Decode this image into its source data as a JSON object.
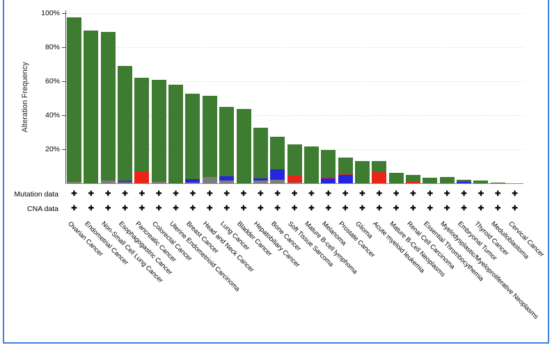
{
  "window": {
    "border_color": "#3d7fd9",
    "background": "#ffffff"
  },
  "chart_data": {
    "type": "bar",
    "stacked": true,
    "title": "",
    "xlabel": "",
    "ylabel": "Alteration Frequency",
    "ylim": [
      0,
      100
    ],
    "grid": "faint dashed horizontal gridlines at each y tick",
    "legend_position": "none",
    "yticks": [
      {
        "value": 20,
        "label": "20%"
      },
      {
        "value": 40,
        "label": "40%"
      },
      {
        "value": 60,
        "label": "60%"
      },
      {
        "value": 80,
        "label": "80%"
      },
      {
        "value": 100,
        "label": "100%"
      }
    ],
    "alteration_colors": {
      "mutation": "#3d7c31",
      "amplification": "#ea2518",
      "deep_deletion": "#2525dd",
      "fusion": "#42429e",
      "multiple_alterations": "#7d7d7d"
    },
    "bars": [
      {
        "label": "Ovarian Cancer",
        "total": 97.5,
        "segments": [
          {
            "type": "multiple_alterations",
            "value": 1
          },
          {
            "type": "mutation",
            "value": 96.5
          }
        ]
      },
      {
        "label": "Endometrial Cancer",
        "total": 90,
        "segments": [
          {
            "type": "mutation",
            "value": 90
          }
        ]
      },
      {
        "label": "Non-Small Cell Lung Cancer",
        "total": 89,
        "segments": [
          {
            "type": "multiple_alterations",
            "value": 1.5
          },
          {
            "type": "mutation",
            "value": 87.5
          }
        ]
      },
      {
        "label": "Esophagogastric Cancer",
        "total": 69,
        "segments": [
          {
            "type": "multiple_alterations",
            "value": 0.5
          },
          {
            "type": "fusion",
            "value": 1.3
          },
          {
            "type": "mutation",
            "value": 67.2
          }
        ]
      },
      {
        "label": "Pancreatic Cancer",
        "total": 62,
        "segments": [
          {
            "type": "amplification",
            "value": 7
          },
          {
            "type": "mutation",
            "value": 55
          }
        ]
      },
      {
        "label": "Colorectal Cancer",
        "total": 61,
        "segments": [
          {
            "type": "multiple_alterations",
            "value": 1
          },
          {
            "type": "mutation",
            "value": 60
          }
        ]
      },
      {
        "label": "Uterine Endometrioid Carcinoma",
        "total": 58,
        "segments": [
          {
            "type": "mutation",
            "value": 58
          }
        ]
      },
      {
        "label": "Breast Cancer",
        "total": 52.5,
        "segments": [
          {
            "type": "multiple_alterations",
            "value": 0.5
          },
          {
            "type": "deep_deletion",
            "value": 2
          },
          {
            "type": "mutation",
            "value": 50
          }
        ]
      },
      {
        "label": "Head and Neck Cancer",
        "total": 51.5,
        "segments": [
          {
            "type": "multiple_alterations",
            "value": 3.8
          },
          {
            "type": "mutation",
            "value": 47.7
          }
        ]
      },
      {
        "label": "Lung Cancer",
        "total": 45,
        "segments": [
          {
            "type": "multiple_alterations",
            "value": 1.5
          },
          {
            "type": "deep_deletion",
            "value": 2.5
          },
          {
            "type": "mutation",
            "value": 41
          }
        ]
      },
      {
        "label": "Bladder Cancer",
        "total": 43.5,
        "segments": [
          {
            "type": "mutation",
            "value": 43.5
          }
        ]
      },
      {
        "label": "Hepatobiliary Cancer",
        "total": 32.5,
        "segments": [
          {
            "type": "multiple_alterations",
            "value": 1.5
          },
          {
            "type": "deep_deletion",
            "value": 1.5
          },
          {
            "type": "mutation",
            "value": 29.5
          }
        ]
      },
      {
        "label": "Bone Cancer",
        "total": 27.5,
        "segments": [
          {
            "type": "multiple_alterations",
            "value": 2
          },
          {
            "type": "deep_deletion",
            "value": 6
          },
          {
            "type": "mutation",
            "value": 19.5
          }
        ]
      },
      {
        "label": "Soft Tissue Sarcoma",
        "total": 23,
        "segments": [
          {
            "type": "multiple_alterations",
            "value": 0.5
          },
          {
            "type": "amplification",
            "value": 4
          },
          {
            "type": "mutation",
            "value": 18.5
          }
        ]
      },
      {
        "label": "Mature B-cell lymphoma",
        "total": 21.5,
        "segments": [
          {
            "type": "mutation",
            "value": 21.5
          }
        ]
      },
      {
        "label": "Melanoma",
        "total": 19.5,
        "segments": [
          {
            "type": "deep_deletion",
            "value": 3
          },
          {
            "type": "amplification",
            "value": 0.5
          },
          {
            "type": "mutation",
            "value": 16
          }
        ]
      },
      {
        "label": "Prostate Cancer",
        "total": 15,
        "segments": [
          {
            "type": "deep_deletion",
            "value": 5
          },
          {
            "type": "amplification",
            "value": 0.5
          },
          {
            "type": "mutation",
            "value": 9.5
          }
        ]
      },
      {
        "label": "Glioma",
        "total": 13,
        "segments": [
          {
            "type": "mutation",
            "value": 13
          }
        ]
      },
      {
        "label": "Acute myeloid leukemia",
        "total": 13,
        "segments": [
          {
            "type": "amplification",
            "value": 6.5
          },
          {
            "type": "mutation",
            "value": 6.5
          }
        ]
      },
      {
        "label": "Mature B-Cell Neoplasms",
        "total": 6,
        "segments": [
          {
            "type": "mutation",
            "value": 6
          }
        ]
      },
      {
        "label": "Renal Cell Carcinoma",
        "total": 5,
        "segments": [
          {
            "type": "amplification",
            "value": 0.8
          },
          {
            "type": "mutation",
            "value": 4.2
          }
        ]
      },
      {
        "label": "Essential Thrombocythemia",
        "total": 3.4,
        "segments": [
          {
            "type": "mutation",
            "value": 3.4
          }
        ]
      },
      {
        "label": "Myelodysplastic/Myeloproliferative Neoplasms",
        "total": 3.8,
        "segments": [
          {
            "type": "mutation",
            "value": 3.8
          }
        ]
      },
      {
        "label": "Embryonal Tumor",
        "total": 2.2,
        "segments": [
          {
            "type": "deep_deletion",
            "value": 1
          },
          {
            "type": "mutation",
            "value": 1.2
          }
        ]
      },
      {
        "label": "Thyroid Cancer",
        "total": 1.8,
        "segments": [
          {
            "type": "mutation",
            "value": 1.8
          }
        ]
      },
      {
        "label": "Medulloblastoma",
        "total": 0.3,
        "segments": [
          {
            "type": "mutation",
            "value": 0.3
          }
        ]
      },
      {
        "label": "Cervical Cancer",
        "total": 0.1,
        "segments": [
          {
            "type": "mutation",
            "value": 0.1
          }
        ]
      }
    ]
  },
  "tracks": {
    "mutation": {
      "label": "Mutation data",
      "symbol": "✚",
      "available": [
        true,
        true,
        true,
        true,
        true,
        true,
        true,
        true,
        true,
        true,
        true,
        true,
        true,
        true,
        true,
        true,
        true,
        true,
        true,
        true,
        true,
        true,
        true,
        true,
        true,
        true,
        true
      ]
    },
    "cna": {
      "label": "CNA data",
      "symbol": "✚",
      "available": [
        true,
        true,
        true,
        true,
        true,
        true,
        true,
        true,
        true,
        true,
        true,
        true,
        true,
        true,
        true,
        true,
        true,
        true,
        true,
        true,
        true,
        true,
        true,
        true,
        true,
        true,
        true
      ]
    }
  }
}
